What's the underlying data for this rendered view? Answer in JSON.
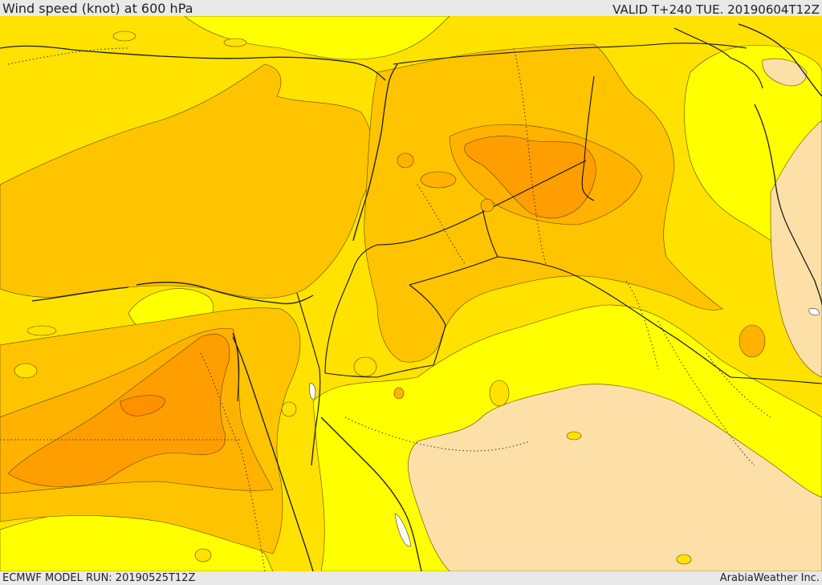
{
  "header": {
    "title": "Wind speed (knot) at 600 hPa",
    "valid_time": "VALID T+240 TUE. 20190604T12Z"
  },
  "footer": {
    "model_run": "ECMWF MODEL RUN: 20190525T12Z",
    "credit": "ArabiaWeather Inc."
  },
  "map": {
    "field": "wind speed at 600 hPa",
    "colors": {
      "beige": "#fce0a8",
      "yellow": "#ffff00",
      "gold": "#ffe200",
      "amber": "#ffc400",
      "orange_light": "#ffb200",
      "orange": "#ff9e00",
      "lake": "#ffffff"
    }
  }
}
